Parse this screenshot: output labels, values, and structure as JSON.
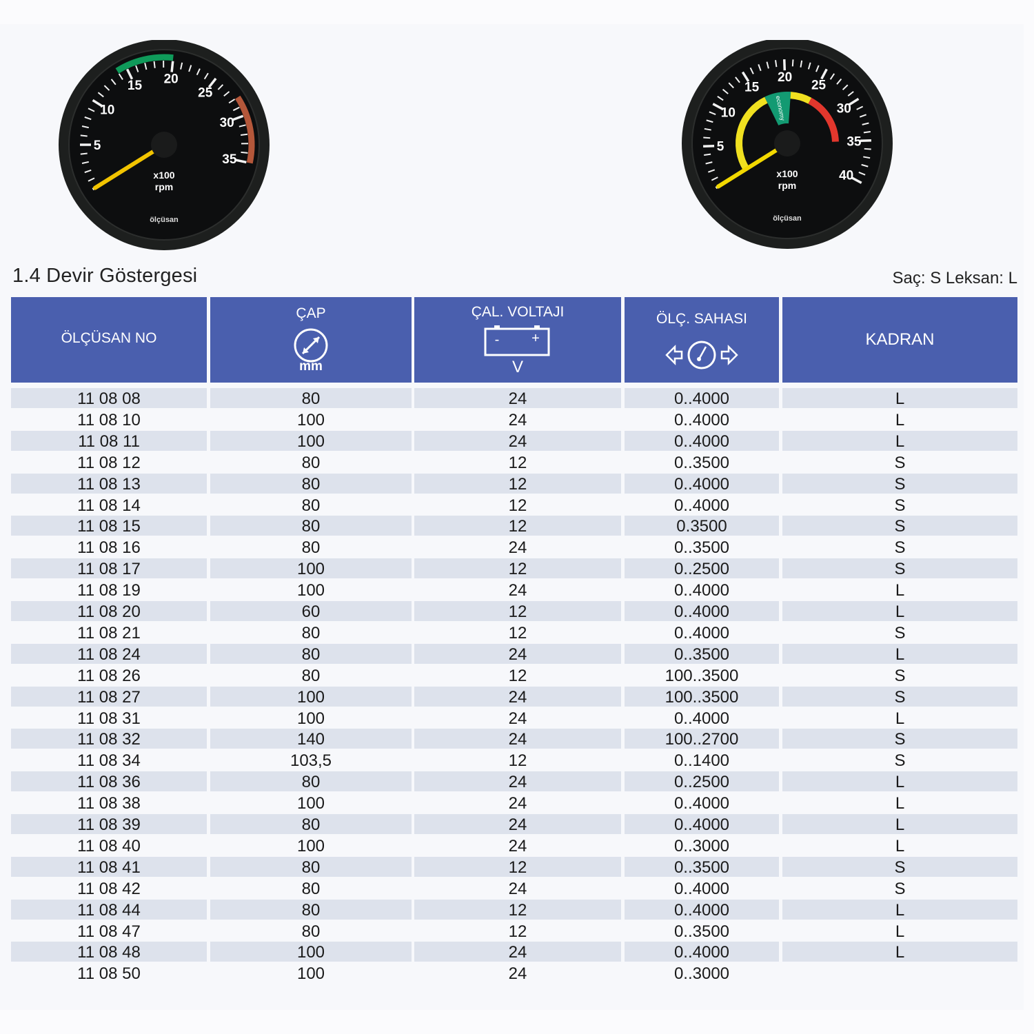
{
  "section_title": "1.4 Devir Göstergesi",
  "legend_note": "Saç: S  Leksan: L",
  "gauges": [
    {
      "labels": [
        "5",
        "10",
        "15",
        "20",
        "25",
        "30",
        "35"
      ],
      "unit_line1": "x100",
      "unit_line2": "rpm",
      "brand": "ölçüsan",
      "max": 35,
      "bands": [
        {
          "from": 14,
          "to": 20,
          "color": "#0f9a5a"
        },
        {
          "from": 28,
          "to": 35,
          "color": "#b4573a"
        }
      ],
      "needle_value": 0,
      "needle_color": "#f2c400"
    },
    {
      "labels": [
        "5",
        "10",
        "15",
        "20",
        "25",
        "30",
        "35",
        "40"
      ],
      "unit_line1": "x100",
      "unit_line2": "rpm",
      "brand": "ölçüsan",
      "max": 40,
      "band_label": "economy",
      "bands": [
        {
          "from": 0,
          "to": 16,
          "color": "#f0e020"
        },
        {
          "from": 16,
          "to": 21,
          "color": "#139a72"
        },
        {
          "from": 21,
          "to": 25,
          "color": "#f0e020"
        },
        {
          "from": 25,
          "to": 35,
          "color": "#e2372d"
        }
      ],
      "needle_value": 0,
      "needle_color": "#f2d800"
    }
  ],
  "table": {
    "header_color": "#4a5fae",
    "columns": [
      {
        "label": "ÖLÇÜSAN NO",
        "icon": "none"
      },
      {
        "label": "ÇAP",
        "sub": "mm",
        "icon": "diameter-icon"
      },
      {
        "label": "ÇAL. VOLTAJI",
        "sub": "V",
        "icon": "battery-icon",
        "minus": "-",
        "plus": "+"
      },
      {
        "label": "ÖLÇ. SAHASI",
        "icon": "gauge-range-icon"
      },
      {
        "label": "KADRAN",
        "icon": "none"
      }
    ],
    "rows": [
      [
        "11 08 08",
        "80",
        "24",
        "0..4000",
        "L"
      ],
      [
        "11 08 10",
        "100",
        "24",
        "0..4000",
        "L"
      ],
      [
        "11 08 11",
        "100",
        "24",
        "0..4000",
        "L"
      ],
      [
        "11 08 12",
        "80",
        "12",
        "0..3500",
        "S"
      ],
      [
        "11 08 13",
        "80",
        "12",
        "0..4000",
        "S"
      ],
      [
        "11 08 14",
        "80",
        "12",
        "0..4000",
        "S"
      ],
      [
        "11 08 15",
        "80",
        "12",
        "0.3500",
        "S"
      ],
      [
        "11 08 16",
        "80",
        "24",
        "0..3500",
        "S"
      ],
      [
        "11 08 17",
        "100",
        "12",
        "0..2500",
        "S"
      ],
      [
        "11 08 19",
        "100",
        "24",
        "0..4000",
        "L"
      ],
      [
        "11 08 20",
        "60",
        "12",
        "0..4000",
        "L"
      ],
      [
        "11 08 21",
        "80",
        "12",
        "0..4000",
        "S"
      ],
      [
        "11 08 24",
        "80",
        "24",
        "0..3500",
        "L"
      ],
      [
        "11 08 26",
        "80",
        "12",
        "100..3500",
        "S"
      ],
      [
        "11 08 27",
        "100",
        "24",
        "100..3500",
        "S"
      ],
      [
        "11 08 31",
        "100",
        "24",
        "0..4000",
        "L"
      ],
      [
        "11 08 32",
        "140",
        "24",
        "100..2700",
        "S"
      ],
      [
        "11 08 34",
        "103,5",
        "12",
        "0..1400",
        "S"
      ],
      [
        "11 08 36",
        "80",
        "24",
        "0..2500",
        "L"
      ],
      [
        "11 08 38",
        "100",
        "24",
        "0..4000",
        "L"
      ],
      [
        "11 08 39",
        "80",
        "24",
        "0..4000",
        "L"
      ],
      [
        "11 08 40",
        "100",
        "24",
        "0..3000",
        "L"
      ],
      [
        "11 08 41",
        "80",
        "12",
        "0..3500",
        "S"
      ],
      [
        "11 08 42",
        "80",
        "24",
        "0..4000",
        "S"
      ],
      [
        "11 08 44",
        "80",
        "12",
        "0..4000",
        "L"
      ],
      [
        "11 08 47",
        "80",
        "12",
        "0..3500",
        "L"
      ],
      [
        "11 08 48",
        "100",
        "24",
        "0..4000",
        "L"
      ],
      [
        "11 08 50",
        "100",
        "24",
        "0..3000",
        ""
      ]
    ]
  }
}
